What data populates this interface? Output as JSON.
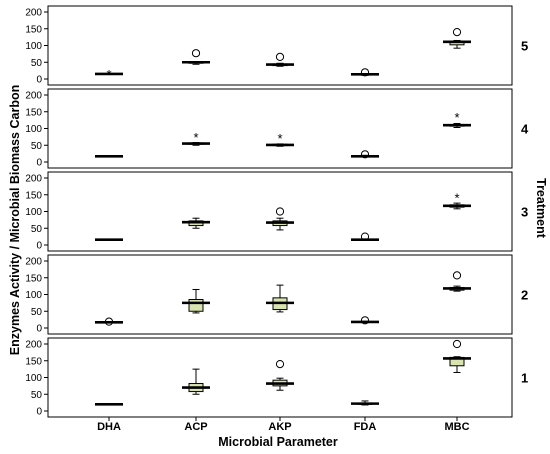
{
  "chart_data": {
    "type": "boxplot",
    "xlabel": "Microbial Parameter",
    "ylabel": "Enzymes Activity / Microbial Biomass Carbon",
    "facet_label": "Treatment",
    "categories": [
      "DHA",
      "ACP",
      "AKP",
      "FDA",
      "MBC"
    ],
    "ylim": [
      0,
      200
    ],
    "yticks": [
      0,
      50,
      100,
      150,
      200
    ],
    "grid": false,
    "colors": {
      "box_fill": "#d9e3b0",
      "box_edge": "#000000"
    },
    "panels": [
      {
        "treatment": "5",
        "boxes": [
          {
            "category": "DHA",
            "min": 15,
            "q1": 15,
            "median": 15,
            "q3": 15,
            "max": 15,
            "outliers": [],
            "extremes": [
              15
            ]
          },
          {
            "category": "ACP",
            "min": 44,
            "q1": 47,
            "median": 50,
            "q3": 51,
            "max": 52,
            "outliers": [
              77
            ],
            "extremes": []
          },
          {
            "category": "AKP",
            "min": 38,
            "q1": 40,
            "median": 43,
            "q3": 45,
            "max": 47,
            "outliers": [
              66
            ],
            "extremes": []
          },
          {
            "category": "FDA",
            "min": 11,
            "q1": 12,
            "median": 14,
            "q3": 15,
            "max": 16,
            "outliers": [
              20
            ],
            "extremes": []
          },
          {
            "category": "MBC",
            "min": 92,
            "q1": 102,
            "median": 111,
            "q3": 112,
            "max": 115,
            "outliers": [
              140
            ],
            "extremes": []
          }
        ]
      },
      {
        "treatment": "4",
        "boxes": [
          {
            "category": "DHA",
            "min": 17,
            "q1": 17,
            "median": 17,
            "q3": 17,
            "max": 17,
            "outliers": [],
            "extremes": []
          },
          {
            "category": "ACP",
            "min": 50,
            "q1": 53,
            "median": 55,
            "q3": 57,
            "max": 58,
            "outliers": [],
            "extremes": [
              75
            ]
          },
          {
            "category": "AKP",
            "min": 47,
            "q1": 49,
            "median": 51,
            "q3": 53,
            "max": 54,
            "outliers": [],
            "extremes": [
              71
            ]
          },
          {
            "category": "FDA",
            "min": 15,
            "q1": 16,
            "median": 17,
            "q3": 18,
            "max": 20,
            "outliers": [
              23
            ],
            "extremes": []
          },
          {
            "category": "MBC",
            "min": 103,
            "q1": 107,
            "median": 110,
            "q3": 112,
            "max": 115,
            "outliers": [],
            "extremes": [
              135
            ]
          }
        ]
      },
      {
        "treatment": "3",
        "boxes": [
          {
            "category": "DHA",
            "min": 16,
            "q1": 16,
            "median": 16,
            "q3": 16,
            "max": 16,
            "outliers": [],
            "extremes": []
          },
          {
            "category": "ACP",
            "min": 50,
            "q1": 58,
            "median": 68,
            "q3": 72,
            "max": 80,
            "outliers": [],
            "extremes": []
          },
          {
            "category": "AKP",
            "min": 45,
            "q1": 58,
            "median": 67,
            "q3": 72,
            "max": 80,
            "outliers": [
              100
            ],
            "extremes": []
          },
          {
            "category": "FDA",
            "min": 14,
            "q1": 15,
            "median": 16,
            "q3": 17,
            "max": 18,
            "outliers": [
              25
            ],
            "extremes": []
          },
          {
            "category": "MBC",
            "min": 108,
            "q1": 113,
            "median": 117,
            "q3": 120,
            "max": 125,
            "outliers": [],
            "extremes": [
              142
            ]
          }
        ]
      },
      {
        "treatment": "2",
        "boxes": [
          {
            "category": "DHA",
            "min": 17,
            "q1": 17,
            "median": 17,
            "q3": 17,
            "max": 17,
            "outliers": [
              19
            ],
            "extremes": []
          },
          {
            "category": "ACP",
            "min": 45,
            "q1": 50,
            "median": 75,
            "q3": 85,
            "max": 115,
            "outliers": [],
            "extremes": []
          },
          {
            "category": "AKP",
            "min": 48,
            "q1": 55,
            "median": 75,
            "q3": 90,
            "max": 128,
            "outliers": [],
            "extremes": []
          },
          {
            "category": "FDA",
            "min": 16,
            "q1": 17,
            "median": 18,
            "q3": 19,
            "max": 20,
            "outliers": [
              23
            ],
            "extremes": []
          },
          {
            "category": "MBC",
            "min": 110,
            "q1": 113,
            "median": 118,
            "q3": 121,
            "max": 125,
            "outliers": [
              157
            ],
            "extremes": []
          }
        ]
      },
      {
        "treatment": "1",
        "boxes": [
          {
            "category": "DHA",
            "min": 18,
            "q1": 19,
            "median": 20,
            "q3": 20,
            "max": 21,
            "outliers": [],
            "extremes": []
          },
          {
            "category": "ACP",
            "min": 50,
            "q1": 58,
            "median": 70,
            "q3": 82,
            "max": 125,
            "outliers": [],
            "extremes": []
          },
          {
            "category": "AKP",
            "min": 62,
            "q1": 75,
            "median": 82,
            "q3": 92,
            "max": 98,
            "outliers": [
              140
            ],
            "extremes": []
          },
          {
            "category": "FDA",
            "min": 18,
            "q1": 20,
            "median": 22,
            "q3": 24,
            "max": 30,
            "outliers": [],
            "extremes": []
          },
          {
            "category": "MBC",
            "min": 115,
            "q1": 135,
            "median": 157,
            "q3": 160,
            "max": 162,
            "outliers": [
              200
            ],
            "extremes": []
          }
        ]
      }
    ]
  }
}
